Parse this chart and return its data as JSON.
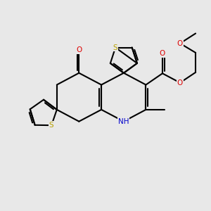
{
  "background_color": "#e8e8e8",
  "atom_colors": {
    "S": "#b8a000",
    "O": "#dd0000",
    "N": "#0000cc",
    "C": "#000000"
  },
  "bond_color": "#000000",
  "bond_width": 1.5,
  "figsize": [
    3.0,
    3.0
  ],
  "dpi": 100
}
